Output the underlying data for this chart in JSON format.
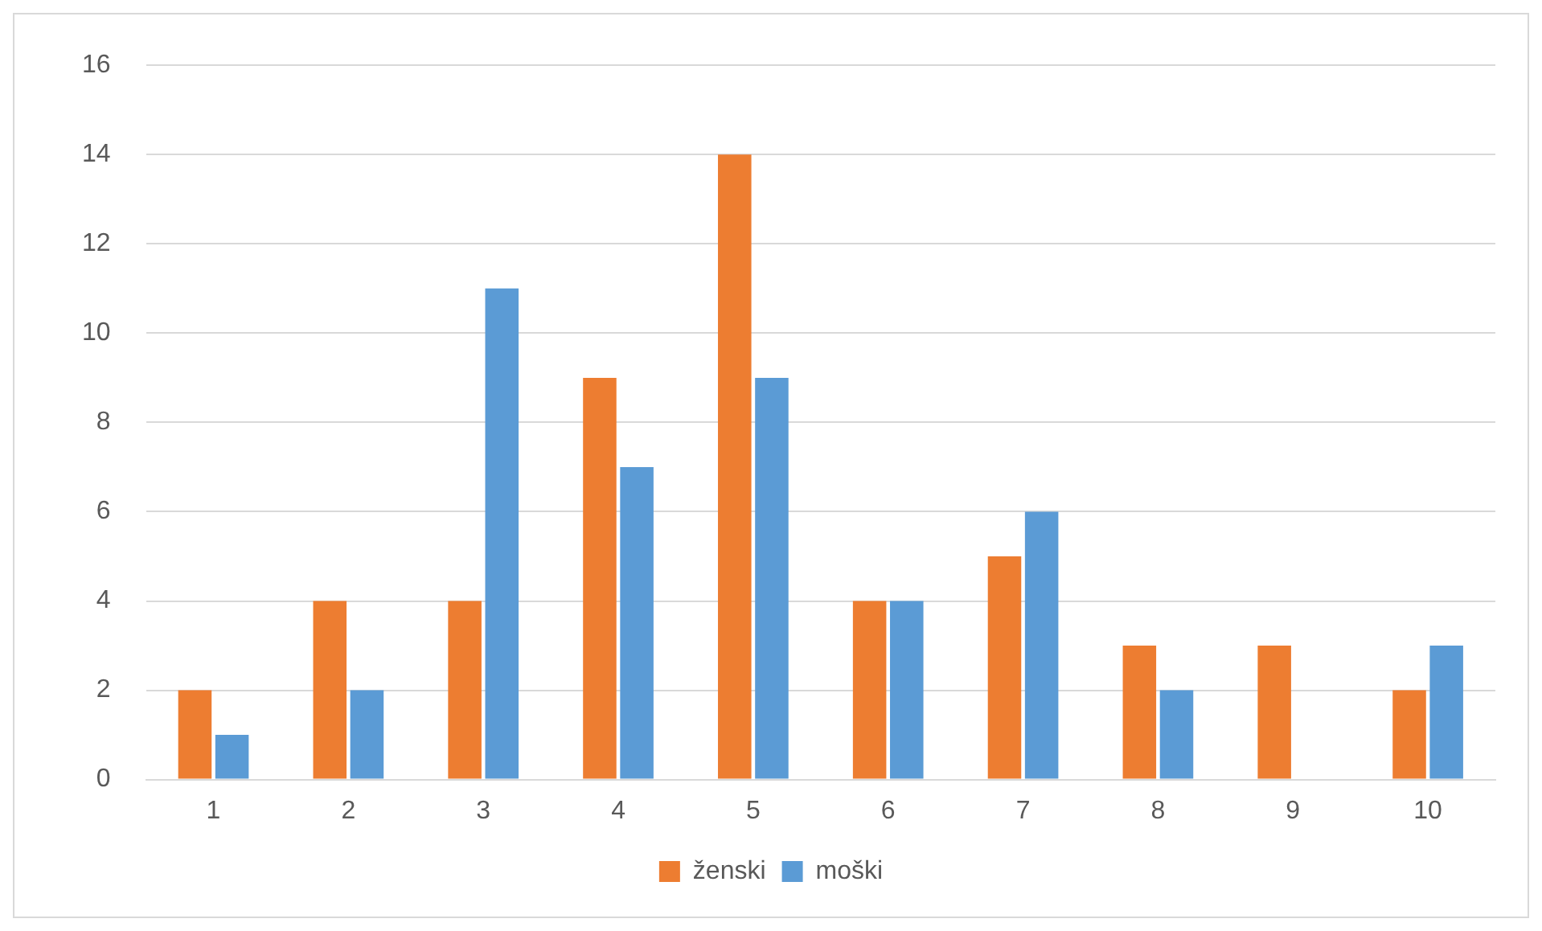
{
  "chart_data": {
    "type": "bar",
    "categories": [
      "1",
      "2",
      "3",
      "4",
      "5",
      "6",
      "7",
      "8",
      "9",
      "10"
    ],
    "series": [
      {
        "name": "ženski",
        "color": "#ed7d31",
        "values": [
          2,
          4,
          4,
          9,
          14,
          4,
          5,
          3,
          3,
          2
        ]
      },
      {
        "name": "moški",
        "color": "#5b9bd5",
        "values": [
          1,
          2,
          11,
          7,
          9,
          4,
          6,
          2,
          0,
          3
        ]
      }
    ],
    "ylim": [
      0,
      16
    ],
    "yticks": [
      0,
      2,
      4,
      6,
      8,
      10,
      12,
      14,
      16
    ],
    "grid": "y",
    "legend": "bottom"
  }
}
